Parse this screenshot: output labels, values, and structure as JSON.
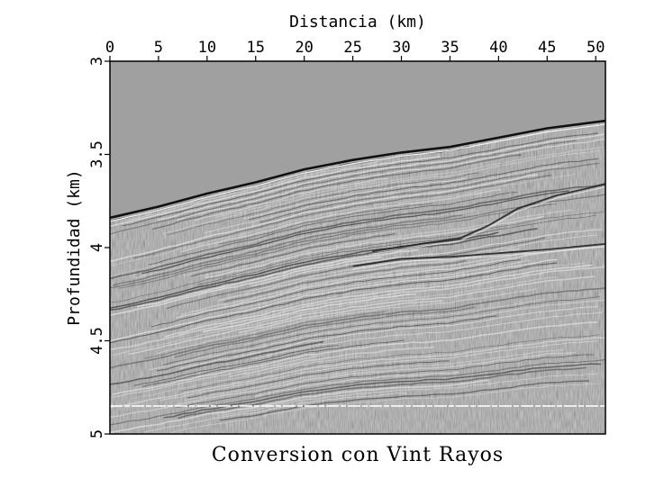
{
  "figure": {
    "caption": "Conversion con Vint Rayos",
    "colors": {
      "background": "#a0a0a0",
      "frame": "#000000",
      "text": "#000000"
    }
  },
  "chart_data": {
    "type": "heatmap",
    "title": "",
    "xlabel": "Distancia (km)",
    "ylabel": "Profundidad (km)",
    "xlim": [
      0,
      51
    ],
    "ylim": [
      5,
      3
    ],
    "x_ticks": [
      "0",
      "5",
      "10",
      "15",
      "20",
      "25",
      "30",
      "35",
      "40",
      "45",
      "50"
    ],
    "y_ticks": [
      "3",
      "3.5",
      "4",
      "4.5",
      "5"
    ],
    "x_axis_position": "top",
    "grid": false,
    "colormap": "grayscale",
    "reflectors": [
      {
        "name": "seafloor",
        "x": [
          0,
          5,
          10,
          15,
          20,
          25,
          30,
          35,
          40,
          45,
          51
        ],
        "y": [
          3.84,
          3.78,
          3.71,
          3.65,
          3.58,
          3.53,
          3.49,
          3.46,
          3.41,
          3.36,
          3.32
        ]
      },
      {
        "name": "deep-reflector",
        "x": [
          27,
          32,
          36,
          39,
          42,
          46,
          51
        ],
        "y": [
          4.02,
          3.98,
          3.95,
          3.88,
          3.79,
          3.72,
          3.66
        ]
      },
      {
        "name": "lower-event",
        "x": [
          25,
          30,
          35,
          40,
          45,
          51
        ],
        "y": [
          4.1,
          4.06,
          4.05,
          4.03,
          4.01,
          3.98
        ]
      },
      {
        "name": "noise-band",
        "x": [
          0,
          51
        ],
        "y": [
          4.85,
          4.85
        ]
      }
    ]
  }
}
